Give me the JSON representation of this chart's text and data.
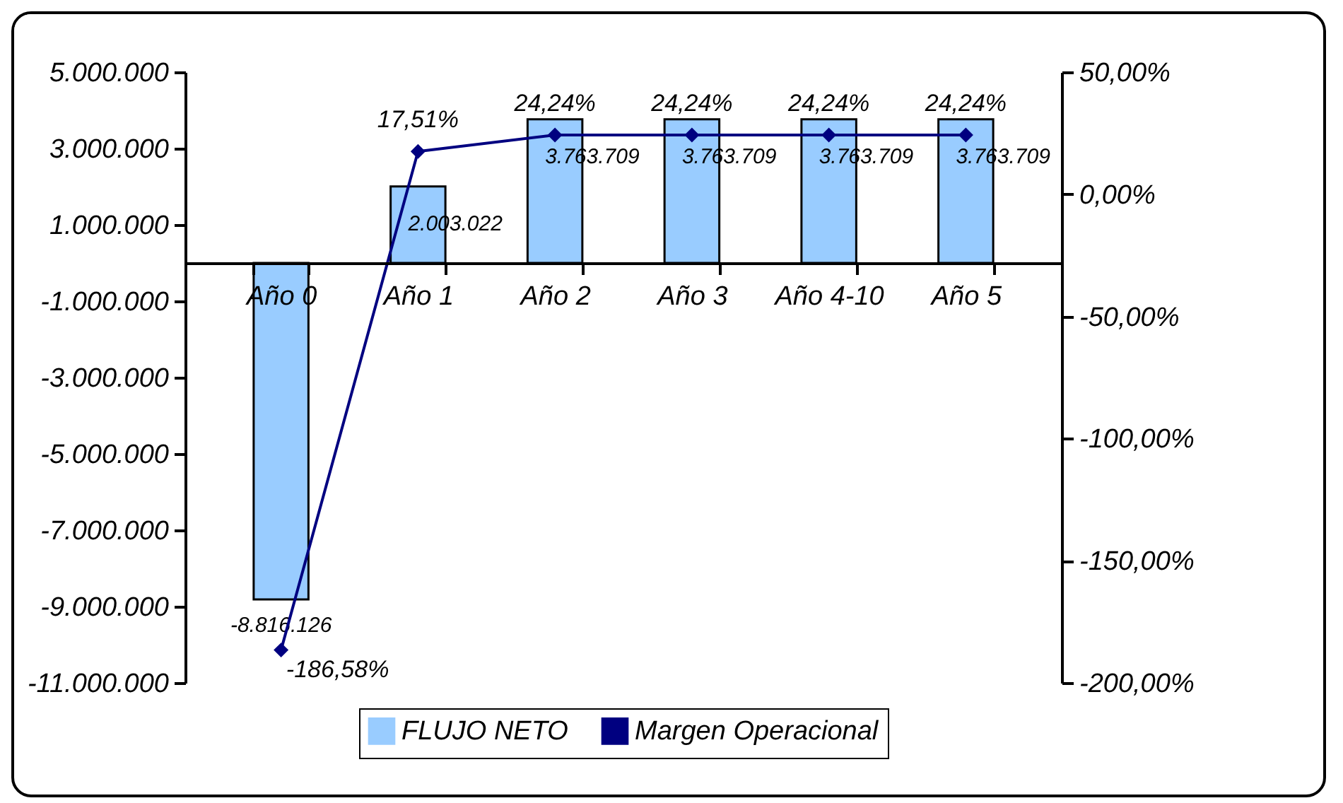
{
  "chart_data": {
    "type": "bar",
    "categories": [
      "Año 0",
      "Año 1",
      "Año 2",
      "Año 3",
      "Año 4-10",
      "Año 5"
    ],
    "series": [
      {
        "name": "FLUJO NETO",
        "type": "bar",
        "color": "#99ccff",
        "values": [
          -8816126,
          2003022,
          3763709,
          3763709,
          3763709,
          3763709
        ],
        "value_labels": [
          "-8.816.126",
          "2.003.022",
          "3.763.709",
          "3.763.709",
          "3.763.709",
          "3.763.709"
        ]
      },
      {
        "name": "Margen Operacional",
        "type": "line",
        "axis": "y2",
        "color": "#000080",
        "values": [
          -186.58,
          17.51,
          24.24,
          24.24,
          24.24,
          24.24
        ],
        "value_labels": [
          "-186,58%",
          "17,51%",
          "24,24%",
          "24,24%",
          "24,24%",
          "24,24%"
        ]
      }
    ],
    "ylim": [
      -11000000,
      5000000
    ],
    "yticks": [
      {
        "value": 5000000,
        "label": "5.000.000"
      },
      {
        "value": 3000000,
        "label": "3.000.000"
      },
      {
        "value": 1000000,
        "label": "1.000.000"
      },
      {
        "value": -1000000,
        "label": "-1.000.000"
      },
      {
        "value": -3000000,
        "label": "-3.000.000"
      },
      {
        "value": -5000000,
        "label": "-5.000.000"
      },
      {
        "value": -7000000,
        "label": "-7.000.000"
      },
      {
        "value": -9000000,
        "label": "-9.000.000"
      },
      {
        "value": -11000000,
        "label": "-11.000.000"
      }
    ],
    "y2lim": [
      -200,
      50
    ],
    "y2ticks": [
      {
        "value": 50,
        "label": "50,00%"
      },
      {
        "value": 0,
        "label": "0,00%"
      },
      {
        "value": -50,
        "label": "-50,00%"
      },
      {
        "value": -100,
        "label": "-100,00%"
      },
      {
        "value": -150,
        "label": "-150,00%"
      },
      {
        "value": -200,
        "label": "-200,00%"
      }
    ],
    "marker": "diamond",
    "legend": "bottom",
    "grid": false
  }
}
